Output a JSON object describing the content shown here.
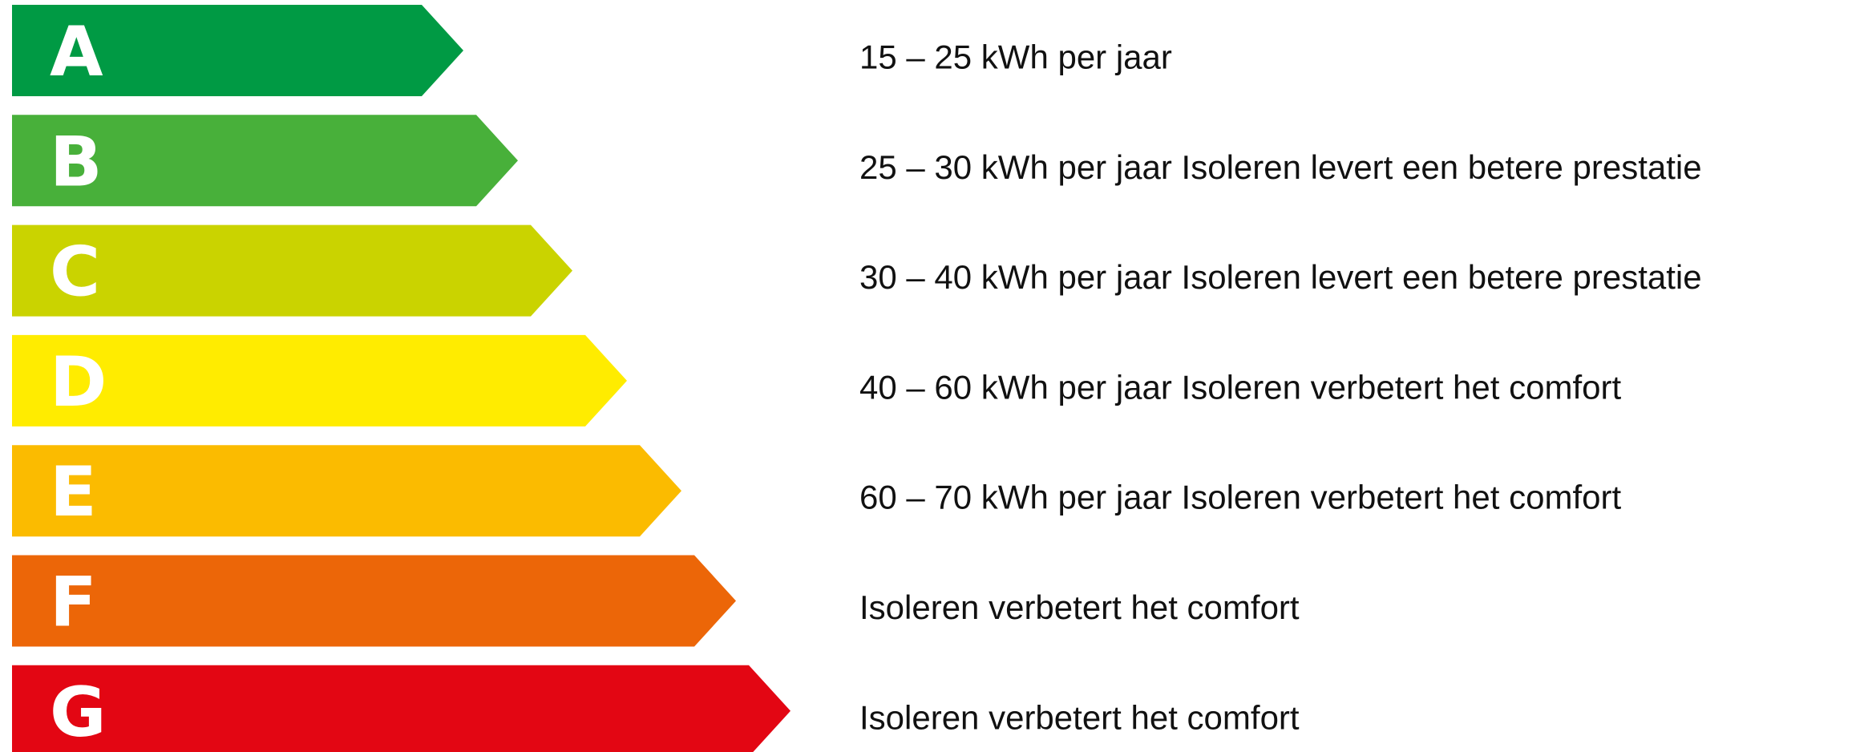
{
  "rows": [
    {
      "letter": "A",
      "color": "#009a44",
      "text": "15 – 25 kWh per jaar"
    },
    {
      "letter": "B",
      "color": "#48b03a",
      "text": "25 – 30 kWh per jaar Isoleren levert een betere prestatie"
    },
    {
      "letter": "C",
      "color": "#cad300",
      "text": "30 – 40 kWh per jaar Isoleren levert een betere prestatie"
    },
    {
      "letter": "D",
      "color": "#ffec00",
      "text": "40 – 60 kWh per jaar Isoleren verbetert het comfort"
    },
    {
      "letter": "E",
      "color": "#fbbb00",
      "text": "60 – 70 kWh per jaar Isoleren verbetert het comfort"
    },
    {
      "letter": "F",
      "color": "#ec6608",
      "text": "Isoleren verbetert het comfort"
    },
    {
      "letter": "G",
      "color": "#e30613",
      "text": "Isoleren verbetert het comfort"
    }
  ]
}
